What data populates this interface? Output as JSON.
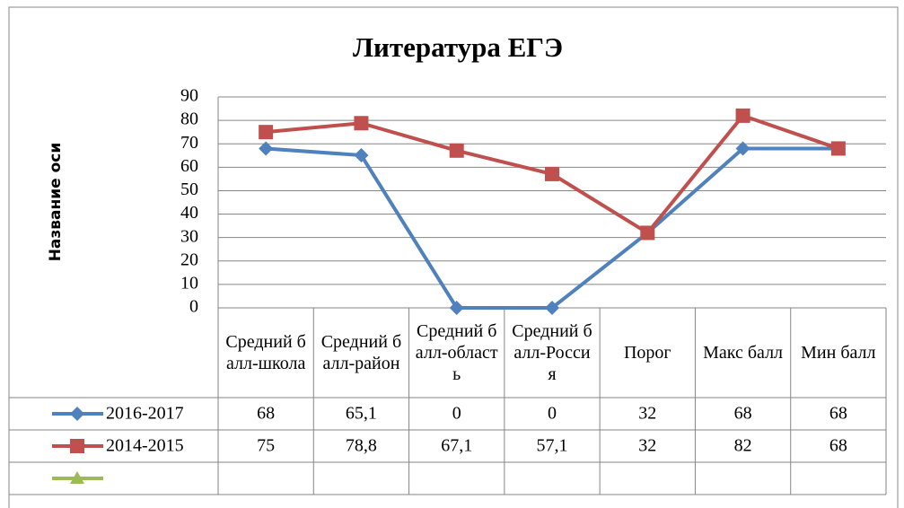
{
  "chart_data": {
    "type": "line",
    "title": "Литература ЕГЭ",
    "y_axis_label": "Название оси",
    "categories": [
      "Средний балл-школа",
      "Средний балл-район",
      "Средний балл-область",
      "Средний балл-Россия",
      "Порог",
      "Макс балл",
      "Мин балл"
    ],
    "series": [
      {
        "name": "2016-2017",
        "color": "#4f81bd",
        "marker": "diamond",
        "values": [
          68,
          65.1,
          0,
          0,
          32,
          68,
          68
        ],
        "value_labels": [
          "68",
          "65,1",
          "0",
          "0",
          "32",
          "68",
          "68"
        ]
      },
      {
        "name": "2014-2015",
        "color": "#c0504d",
        "marker": "square",
        "values": [
          75,
          78.8,
          67.1,
          57.1,
          32,
          82,
          68
        ],
        "value_labels": [
          "75",
          "78,8",
          "67,1",
          "57,1",
          "32",
          "82",
          "68"
        ]
      },
      {
        "color": "#9bbb59",
        "marker": "triangle",
        "values": [
          null,
          null,
          null,
          null,
          null,
          null,
          null
        ]
      }
    ],
    "ylim": [
      0,
      90
    ],
    "yticks": [
      0,
      10,
      20,
      30,
      40,
      50,
      60,
      70,
      80,
      90
    ],
    "grid": true,
    "data_table": true
  }
}
